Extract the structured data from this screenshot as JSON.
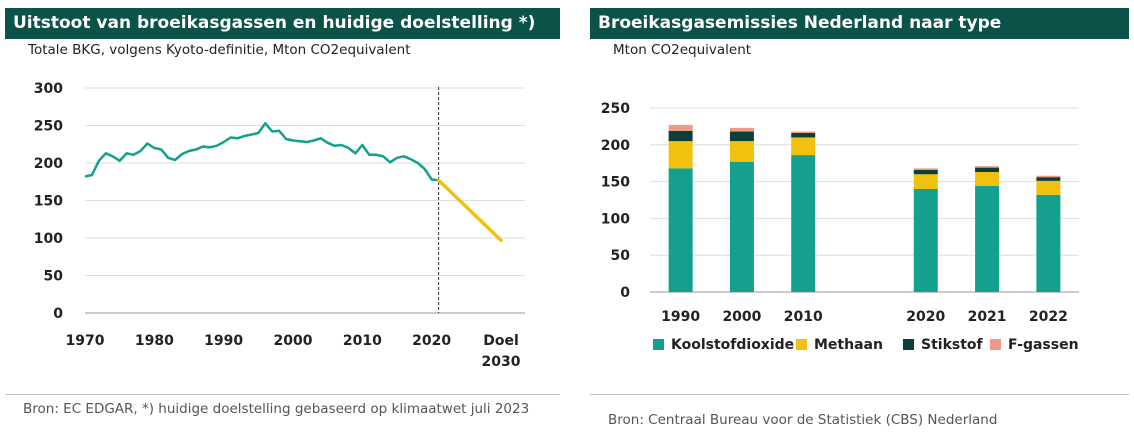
{
  "left_panel": {
    "title": "Uitstoot van broeikasgassen en huidige doelstelling *)",
    "subtitle": "Totale BKG, volgens Kyoto-definitie, Mton CO2equivalent",
    "source": "Bron: EC EDGAR, *) huidige doelstelling gebaseerd op klimaatwet juli 2023"
  },
  "right_panel": {
    "title": "Broeikasgasemissies Nederland naar type",
    "subtitle": "Mton CO2equivalent",
    "source": "Bron: Centraal Bureau voor de Statistiek (CBS) Nederland"
  },
  "chart_data": [
    {
      "type": "line",
      "ylim": [
        0,
        300
      ],
      "yticks": [
        "0",
        "50",
        "100",
        "150",
        "200",
        "250",
        "300"
      ],
      "xticks": [
        "1970",
        "1980",
        "1990",
        "2000",
        "2010",
        "2020"
      ],
      "xtick_extra": [
        "Doel",
        "2030"
      ],
      "grid": true,
      "colors": {
        "history": "#14a08e",
        "target": "#f2c10d",
        "divider": "#333333"
      },
      "series": [
        {
          "x": [
            1970,
            1971,
            1972,
            1973,
            1974,
            1975,
            1976,
            1977,
            1978,
            1979,
            1980,
            1981,
            1982,
            1983,
            1984,
            1985,
            1986,
            1987,
            1988,
            1989,
            1990,
            1991,
            1992,
            1993,
            1994,
            1995,
            1996,
            1997,
            1998,
            1999,
            2000,
            2001,
            2002,
            2003,
            2004,
            2005,
            2006,
            2007,
            2008,
            2009,
            2010,
            2011,
            2012,
            2013,
            2014,
            2015,
            2016,
            2017,
            2018,
            2019,
            2020,
            2021
          ],
          "values": [
            182,
            184,
            203,
            213,
            209,
            203,
            213,
            211,
            216,
            226,
            220,
            218,
            207,
            204,
            212,
            216,
            218,
            222,
            221,
            223,
            228,
            234,
            233,
            236,
            238,
            240,
            253,
            242,
            243,
            232,
            230,
            229,
            228,
            230,
            233,
            227,
            223,
            224,
            220,
            213,
            224,
            211,
            211,
            209,
            201,
            207,
            209,
            205,
            200,
            192,
            178,
            177
          ]
        },
        {
          "x": [
            2021,
            2030
          ],
          "values": [
            177,
            97
          ]
        }
      ]
    },
    {
      "type": "bar",
      "stacked": true,
      "categories": [
        "1990",
        "2000",
        "2010",
        "",
        "2020",
        "2021",
        "2022"
      ],
      "ylim": [
        0,
        250
      ],
      "yticks": [
        "0",
        "50",
        "100",
        "150",
        "200",
        "250"
      ],
      "legend_position": "bottom",
      "series": [
        {
          "name": "Koolstofdioxide",
          "color": "#14a08e",
          "values": [
            168,
            177,
            186,
            null,
            140,
            144,
            132
          ]
        },
        {
          "name": "Methaan",
          "color": "#f2c10d",
          "values": [
            37,
            28,
            24,
            null,
            20,
            19,
            19
          ]
        },
        {
          "name": "Stikstof",
          "color": "#0d3f38",
          "values": [
            14,
            13,
            6,
            null,
            6,
            6,
            5
          ]
        },
        {
          "name": "F-gassen",
          "color": "#ee9a86",
          "values": [
            8,
            5,
            2,
            null,
            2,
            2,
            2
          ]
        }
      ]
    }
  ]
}
